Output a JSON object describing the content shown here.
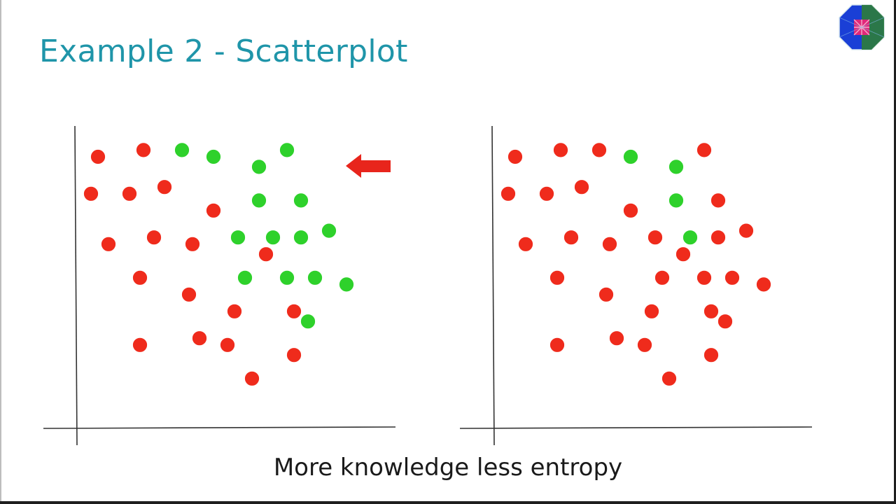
{
  "slide": {
    "title": "Example 2 - Scatterplot",
    "caption": "More knowledge less entropy"
  },
  "logo": {
    "icon": "octagon-logo-icon",
    "colors": [
      "#1a3fd6",
      "#2e7d3a",
      "#e0287a"
    ]
  },
  "arrow": {
    "icon": "left-arrow-icon",
    "color": "#e8251c",
    "points_to": "left-chart"
  },
  "colors": {
    "red": "#ef2b1c",
    "green": "#2ed12b",
    "axis": "#333333"
  },
  "chart_data": [
    {
      "type": "scatter",
      "title": "",
      "xlabel": "",
      "ylabel": "",
      "xlim": [
        0,
        100
      ],
      "ylim": [
        0,
        100
      ],
      "grid": false,
      "legend": "none",
      "series": [
        {
          "color": "#ef2b1c",
          "points": [
            [
              8,
              85
            ],
            [
              21,
              87
            ],
            [
              6,
              74
            ],
            [
              17,
              74
            ],
            [
              27,
              76
            ],
            [
              41,
              69
            ],
            [
              11,
              59
            ],
            [
              24,
              61
            ],
            [
              35,
              59
            ],
            [
              56,
              56
            ],
            [
              20,
              49
            ],
            [
              34,
              44
            ],
            [
              47,
              39
            ],
            [
              64,
              39
            ],
            [
              20,
              29
            ],
            [
              37,
              31
            ],
            [
              45,
              29
            ],
            [
              64,
              26
            ],
            [
              52,
              19
            ]
          ]
        },
        {
          "color": "#2ed12b",
          "points": [
            [
              32,
              87
            ],
            [
              41,
              85
            ],
            [
              54,
              82
            ],
            [
              62,
              87
            ],
            [
              54,
              72
            ],
            [
              66,
              72
            ],
            [
              48,
              61
            ],
            [
              58,
              61
            ],
            [
              66,
              61
            ],
            [
              74,
              63
            ],
            [
              50,
              49
            ],
            [
              62,
              49
            ],
            [
              70,
              49
            ],
            [
              79,
              47
            ],
            [
              68,
              36
            ]
          ]
        }
      ]
    },
    {
      "type": "scatter",
      "title": "",
      "xlabel": "",
      "ylabel": "",
      "xlim": [
        0,
        100
      ],
      "ylim": [
        0,
        100
      ],
      "grid": false,
      "legend": "none",
      "series": [
        {
          "color": "#ef2b1c",
          "points": [
            [
              8,
              85
            ],
            [
              21,
              87
            ],
            [
              6,
              74
            ],
            [
              17,
              74
            ],
            [
              27,
              76
            ],
            [
              41,
              69
            ],
            [
              11,
              59
            ],
            [
              24,
              61
            ],
            [
              35,
              59
            ],
            [
              56,
              56
            ],
            [
              20,
              49
            ],
            [
              34,
              44
            ],
            [
              47,
              39
            ],
            [
              64,
              39
            ],
            [
              20,
              29
            ],
            [
              37,
              31
            ],
            [
              45,
              29
            ],
            [
              64,
              26
            ],
            [
              52,
              19
            ],
            [
              32,
              87
            ],
            [
              62,
              87
            ],
            [
              66,
              72
            ],
            [
              48,
              61
            ],
            [
              66,
              61
            ],
            [
              74,
              63
            ],
            [
              50,
              49
            ],
            [
              62,
              49
            ],
            [
              70,
              49
            ],
            [
              79,
              47
            ],
            [
              68,
              36
            ]
          ]
        },
        {
          "color": "#2ed12b",
          "points": [
            [
              41,
              85
            ],
            [
              54,
              82
            ],
            [
              54,
              72
            ],
            [
              58,
              61
            ]
          ]
        }
      ]
    }
  ]
}
